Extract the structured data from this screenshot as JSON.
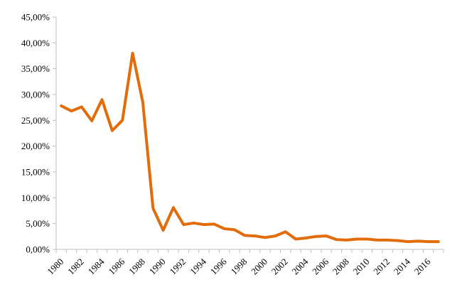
{
  "chart_data": {
    "type": "line",
    "title": "",
    "xlabel": "",
    "ylabel": "",
    "x": [
      1980,
      1981,
      1982,
      1983,
      1984,
      1985,
      1986,
      1987,
      1988,
      1989,
      1990,
      1991,
      1992,
      1993,
      1994,
      1995,
      1996,
      1997,
      1998,
      1999,
      2000,
      2001,
      2002,
      2003,
      2004,
      2005,
      2006,
      2007,
      2008,
      2009,
      2010,
      2011,
      2012,
      2013,
      2014,
      2015,
      2016,
      2017
    ],
    "series": [
      {
        "color": "#e36c0a",
        "values": [
          27.8,
          26.8,
          27.6,
          24.9,
          29.0,
          23.0,
          25.0,
          38.0,
          28.5,
          8.0,
          3.7,
          8.1,
          4.8,
          5.1,
          4.8,
          4.9,
          4.0,
          3.8,
          2.7,
          2.6,
          2.3,
          2.6,
          3.4,
          2.0,
          2.2,
          2.5,
          2.6,
          1.9,
          1.8,
          2.0,
          2.0,
          1.8,
          1.8,
          1.7,
          1.5,
          1.6,
          1.5,
          1.5
        ]
      }
    ],
    "ylim": [
      0,
      45
    ],
    "y_ticks": [
      0,
      5,
      10,
      15,
      20,
      25,
      30,
      35,
      40,
      45
    ],
    "y_tick_labels": [
      "0,00%",
      "5,00%",
      "10,00%",
      "15,00%",
      "20,00%",
      "25,00%",
      "30,00%",
      "35,00%",
      "40,00%",
      "45,00%"
    ],
    "x_tick_labels": [
      "1980",
      "1982",
      "1984",
      "1986",
      "1988",
      "1990",
      "1992",
      "1994",
      "1996",
      "1998",
      "2000",
      "2002",
      "2004",
      "2006",
      "2008",
      "2010",
      "2012",
      "2014",
      "2016"
    ],
    "grid": false,
    "legend": "none"
  }
}
